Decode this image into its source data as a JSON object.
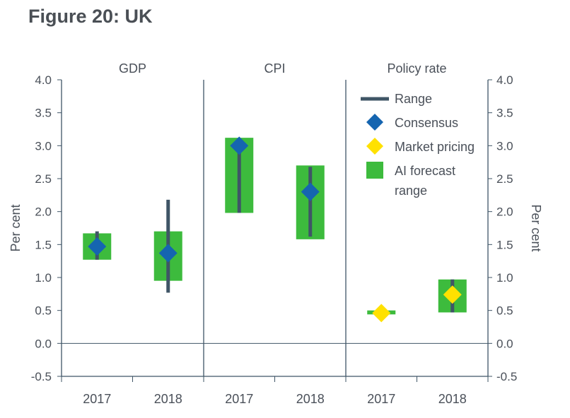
{
  "figure_title": "Figure 20: UK",
  "chart_data": {
    "type": "range_chart",
    "panels": [
      "GDP",
      "CPI",
      "Policy rate"
    ],
    "categories": [
      "2017",
      "2018"
    ],
    "y_label_left": "Per cent",
    "y_label_right": "Per cent",
    "ylim": [
      -0.5,
      4.0
    ],
    "yticks": [
      "4.0",
      "3.5",
      "3.0",
      "2.5",
      "2.0",
      "1.5",
      "1.0",
      "0.5",
      "0.0",
      "-0.5"
    ],
    "legend": {
      "position": "top-right",
      "range": "Range",
      "consensus": "Consensus",
      "market": "Market pricing",
      "ai_line1": "AI forecast",
      "ai_line2": "range"
    },
    "colors": {
      "range": "#3f5566",
      "consensus": "#1565b0",
      "market": "#ffe100",
      "ai": "#3dbb3d",
      "axis": "#3f5566"
    },
    "series": {
      "ai_range": [
        {
          "panel": "GDP",
          "year": "2017",
          "low": 1.27,
          "high": 1.67
        },
        {
          "panel": "GDP",
          "year": "2018",
          "low": 0.95,
          "high": 1.7
        },
        {
          "panel": "CPI",
          "year": "2017",
          "low": 1.98,
          "high": 3.12
        },
        {
          "panel": "CPI",
          "year": "2018",
          "low": 1.58,
          "high": 2.7
        },
        {
          "panel": "Policy rate",
          "year": "2017",
          "low": 0.44,
          "high": 0.5
        },
        {
          "panel": "Policy rate",
          "year": "2018",
          "low": 0.47,
          "high": 0.97
        }
      ],
      "range": [
        {
          "panel": "GDP",
          "year": "2017",
          "low": 1.27,
          "high": 1.7
        },
        {
          "panel": "GDP",
          "year": "2018",
          "low": 0.77,
          "high": 2.18
        },
        {
          "panel": "CPI",
          "year": "2017",
          "low": 1.98,
          "high": 3.08
        },
        {
          "panel": "CPI",
          "year": "2018",
          "low": 1.62,
          "high": 2.68
        },
        {
          "panel": "Policy rate",
          "year": "2018",
          "low": 0.47,
          "high": 0.97
        }
      ],
      "consensus": [
        {
          "panel": "GDP",
          "year": "2017",
          "value": 1.47
        },
        {
          "panel": "GDP",
          "year": "2018",
          "value": 1.37
        },
        {
          "panel": "CPI",
          "year": "2017",
          "value": 3.0
        },
        {
          "panel": "CPI",
          "year": "2018",
          "value": 2.3
        }
      ],
      "market_pricing": [
        {
          "panel": "Policy rate",
          "year": "2017",
          "value": 0.46
        },
        {
          "panel": "Policy rate",
          "year": "2018",
          "value": 0.74
        }
      ]
    }
  }
}
